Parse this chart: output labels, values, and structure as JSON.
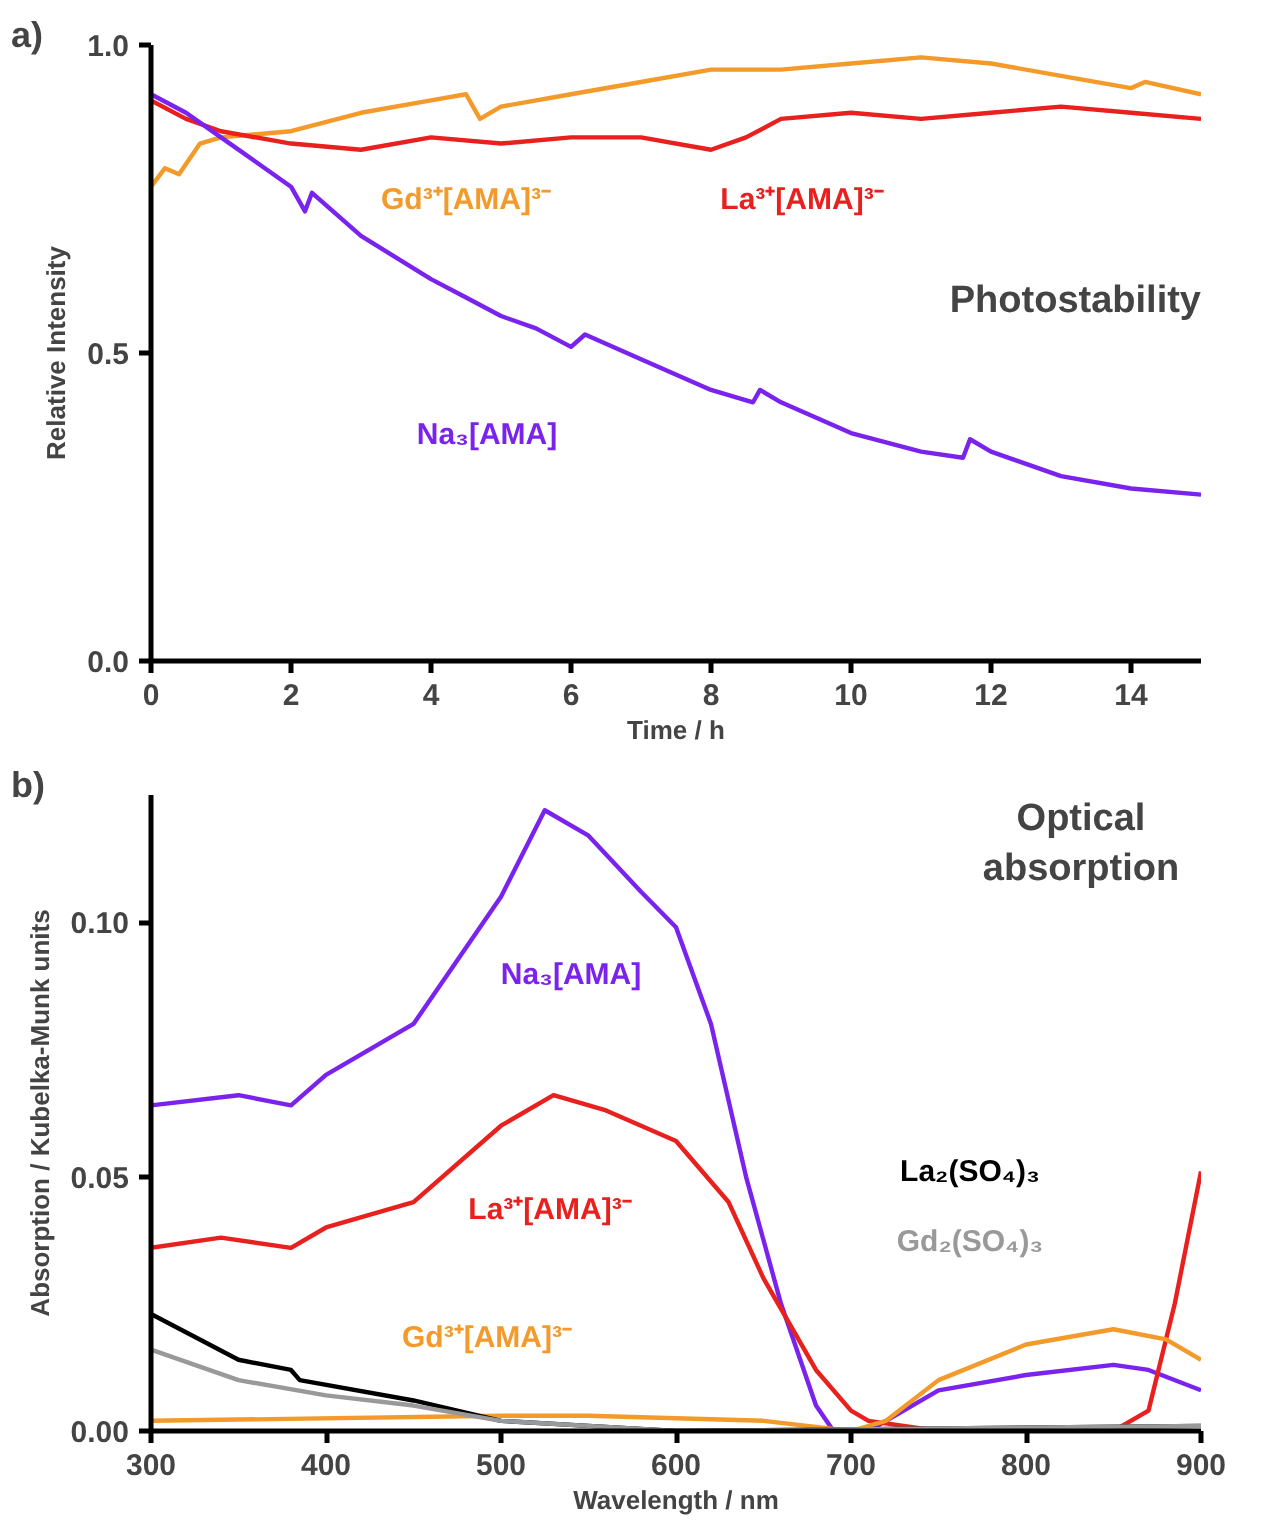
{
  "chart_data": [
    {
      "type": "line",
      "title": "Photostability",
      "xlabel": "Time / h",
      "ylabel": "Relative Intensity",
      "annotations": [
        "a)"
      ],
      "xlim": [
        0,
        15
      ],
      "xticks": [
        0,
        2,
        4,
        6,
        8,
        10,
        12,
        14
      ],
      "ylim": [
        0,
        1.0
      ],
      "yticks": [
        {
          "value": 0,
          "label": "0.0"
        },
        0.5,
        {
          "value": 1.0,
          "label": "1.0"
        }
      ],
      "grid": false,
      "series": [
        {
          "name": "Gd³⁺[AMA]³⁻",
          "color": "#f39a2b",
          "x": [
            0,
            0.2,
            0.4,
            0.7,
            1,
            2,
            3,
            4,
            4.5,
            4.7,
            5,
            6,
            7,
            8,
            9,
            10,
            11,
            12,
            13,
            14,
            14.2,
            15
          ],
          "values": [
            0.77,
            0.8,
            0.79,
            0.84,
            0.85,
            0.86,
            0.89,
            0.91,
            0.92,
            0.88,
            0.9,
            0.92,
            0.94,
            0.96,
            0.96,
            0.97,
            0.98,
            0.97,
            0.95,
            0.93,
            0.94,
            0.92
          ]
        },
        {
          "name": "La³⁺[AMA]³⁻",
          "color": "#e8201e",
          "x": [
            0,
            0.5,
            1,
            2,
            3,
            4,
            5,
            6,
            7,
            8,
            8.5,
            9,
            10,
            11,
            12,
            13,
            14,
            15
          ],
          "values": [
            0.91,
            0.88,
            0.86,
            0.84,
            0.83,
            0.85,
            0.84,
            0.85,
            0.85,
            0.83,
            0.85,
            0.88,
            0.89,
            0.88,
            0.89,
            0.9,
            0.89,
            0.88
          ]
        },
        {
          "name": "Na₃[AMA]",
          "color": "#7a22ee",
          "x": [
            0,
            0.5,
            1,
            1.5,
            2,
            2.2,
            2.3,
            3,
            4,
            4.5,
            5,
            5.5,
            6,
            6.2,
            7,
            8,
            8.6,
            8.7,
            9,
            10,
            11,
            11.6,
            11.7,
            12,
            13,
            14,
            15
          ],
          "values": [
            0.92,
            0.89,
            0.85,
            0.81,
            0.77,
            0.73,
            0.76,
            0.69,
            0.62,
            0.59,
            0.56,
            0.54,
            0.51,
            0.53,
            0.49,
            0.44,
            0.42,
            0.44,
            0.42,
            0.37,
            0.34,
            0.33,
            0.36,
            0.34,
            0.3,
            0.28,
            0.27
          ]
        }
      ]
    },
    {
      "type": "line",
      "title": "Optical\nabsorption",
      "xlabel": "Wavelength / nm",
      "ylabel": "Absorption / Kubelka-Munk units",
      "annotations": [
        "b)"
      ],
      "xlim": [
        300,
        900
      ],
      "xticks": [
        300,
        400,
        500,
        600,
        700,
        800,
        900
      ],
      "ylim": [
        0,
        0.125
      ],
      "yticks": [
        {
          "value": 0,
          "label": "0.00"
        },
        0.05,
        {
          "value": 0.1,
          "label": "0.10"
        }
      ],
      "grid": false,
      "series": [
        {
          "name": "Na₃[AMA]",
          "color": "#7a22ee",
          "x": [
            300,
            350,
            380,
            400,
            450,
            500,
            525,
            550,
            580,
            600,
            620,
            640,
            660,
            680,
            690,
            710,
            720,
            750,
            800,
            850,
            870,
            900
          ],
          "values": [
            0.064,
            0.066,
            0.064,
            0.07,
            0.08,
            0.105,
            0.122,
            0.117,
            0.106,
            0.099,
            0.08,
            0.05,
            0.025,
            0.005,
            0.0,
            0.0,
            0.002,
            0.008,
            0.011,
            0.013,
            0.012,
            0.008
          ]
        },
        {
          "name": "La³⁺[AMA]³⁻",
          "color": "#e8201e",
          "x": [
            300,
            340,
            380,
            400,
            450,
            500,
            530,
            560,
            600,
            630,
            650,
            680,
            700,
            710,
            750,
            850,
            870,
            885,
            900
          ],
          "values": [
            0.036,
            0.038,
            0.036,
            0.04,
            0.045,
            0.06,
            0.066,
            0.063,
            0.057,
            0.045,
            0.03,
            0.012,
            0.004,
            0.002,
            0.0,
            0.0,
            0.004,
            0.025,
            0.051
          ]
        },
        {
          "name": "Gd³⁺[AMA]³⁻",
          "color": "#f39a2b",
          "x": [
            300,
            500,
            550,
            650,
            700,
            720,
            750,
            800,
            850,
            880,
            900
          ],
          "values": [
            0.002,
            0.003,
            0.003,
            0.002,
            0.0,
            0.002,
            0.01,
            0.017,
            0.02,
            0.018,
            0.014
          ]
        },
        {
          "name": "La₂(SO₄)₃",
          "color": "#000000",
          "x": [
            300,
            350,
            380,
            385,
            450,
            500,
            550,
            600,
            900
          ],
          "values": [
            0.023,
            0.014,
            0.012,
            0.01,
            0.006,
            0.002,
            0.001,
            0.0,
            0.001
          ]
        },
        {
          "name": "Gd₂(SO₄)₃",
          "color": "#999999",
          "x": [
            300,
            350,
            400,
            450,
            500,
            550,
            600,
            900
          ],
          "values": [
            0.016,
            0.01,
            0.007,
            0.005,
            0.002,
            0.001,
            0.0,
            0.001
          ]
        }
      ]
    }
  ]
}
